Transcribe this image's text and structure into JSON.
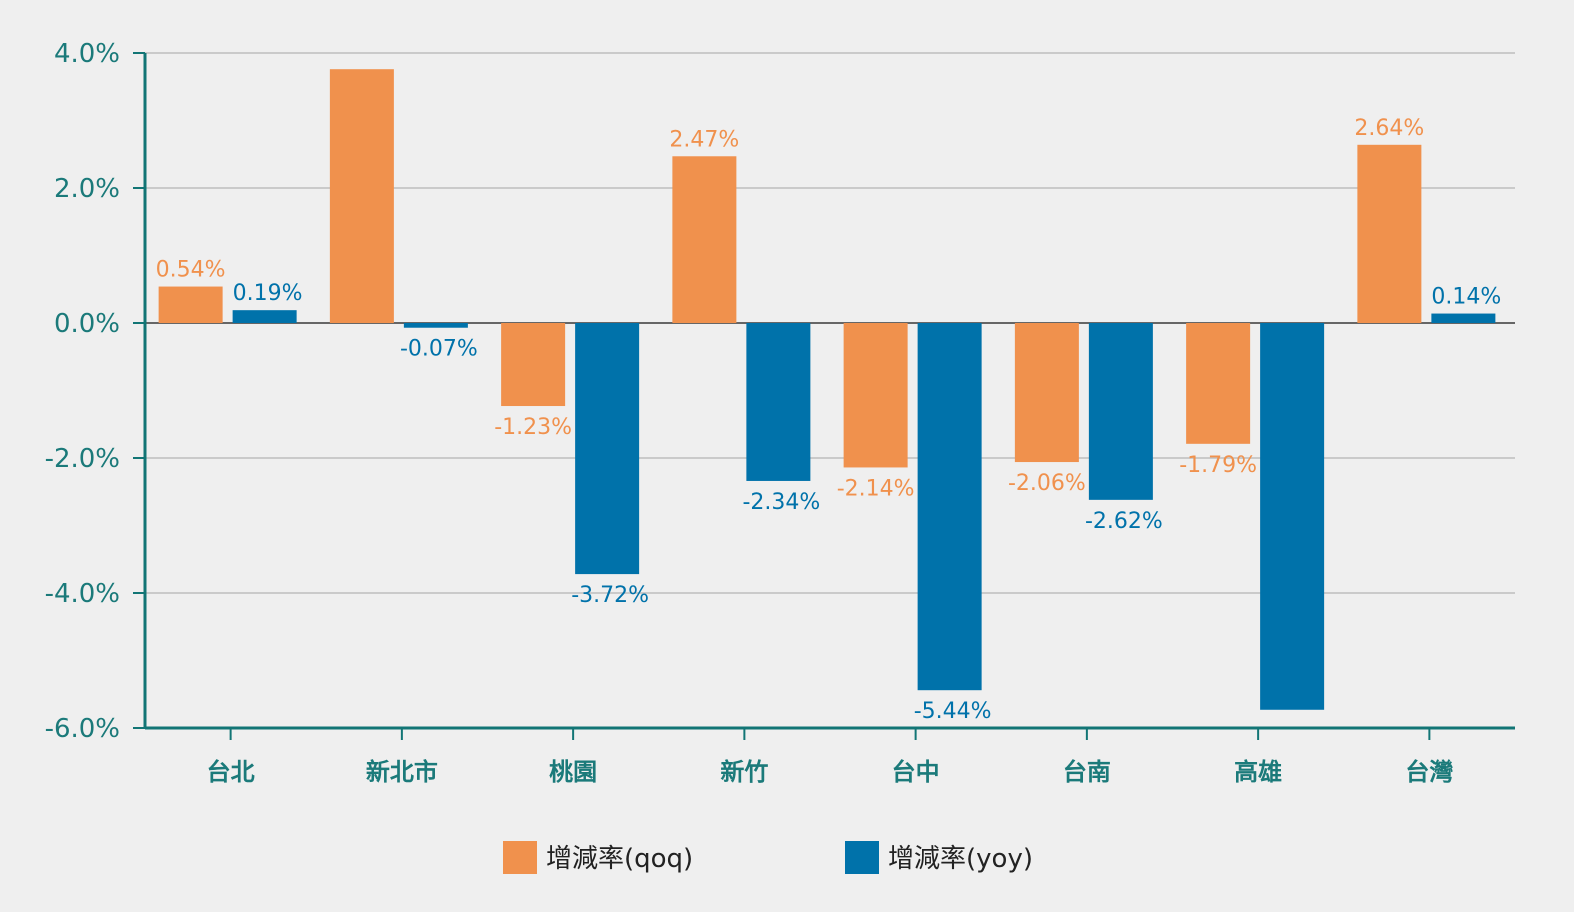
{
  "chart_data": {
    "type": "bar",
    "title": "",
    "xlabel": "",
    "ylabel": "",
    "ylim": [
      -6.0,
      4.0
    ],
    "yticks": [
      4.0,
      2.0,
      0.0,
      -2.0,
      -4.0,
      -6.0
    ],
    "ytick_labels": [
      "4.0%",
      "2.0%",
      "0.0%",
      "-2.0%",
      "-4.0%",
      "-6.0%"
    ],
    "grid": true,
    "legend_position": "bottom",
    "categories": [
      "台北",
      "新北市",
      "桃園",
      "新竹",
      "台中",
      "台南",
      "高雄",
      "台灣"
    ],
    "series": [
      {
        "name": "增減率(qoq)",
        "color": "#f0914d",
        "values": [
          0.54,
          3.76,
          -1.23,
          2.47,
          -2.14,
          -2.06,
          -1.79,
          2.64
        ],
        "labels": [
          "0.54%",
          "",
          "-1.23%",
          "2.47%",
          "-2.14%",
          "-2.06%",
          "-1.79%",
          "2.64%"
        ]
      },
      {
        "name": "增減率(yoy)",
        "color": "#0072aa",
        "values": [
          0.19,
          -0.07,
          -3.72,
          -2.34,
          -5.44,
          -2.62,
          -5.73,
          0.14
        ],
        "labels": [
          "0.19%",
          "-0.07%",
          "-3.72%",
          "-2.34%",
          "-5.44%",
          "-2.62%",
          "",
          "0.14%"
        ]
      }
    ]
  },
  "colors": {
    "axis": "#127575",
    "grid": "#bdbdbd",
    "background": "#efefef"
  }
}
